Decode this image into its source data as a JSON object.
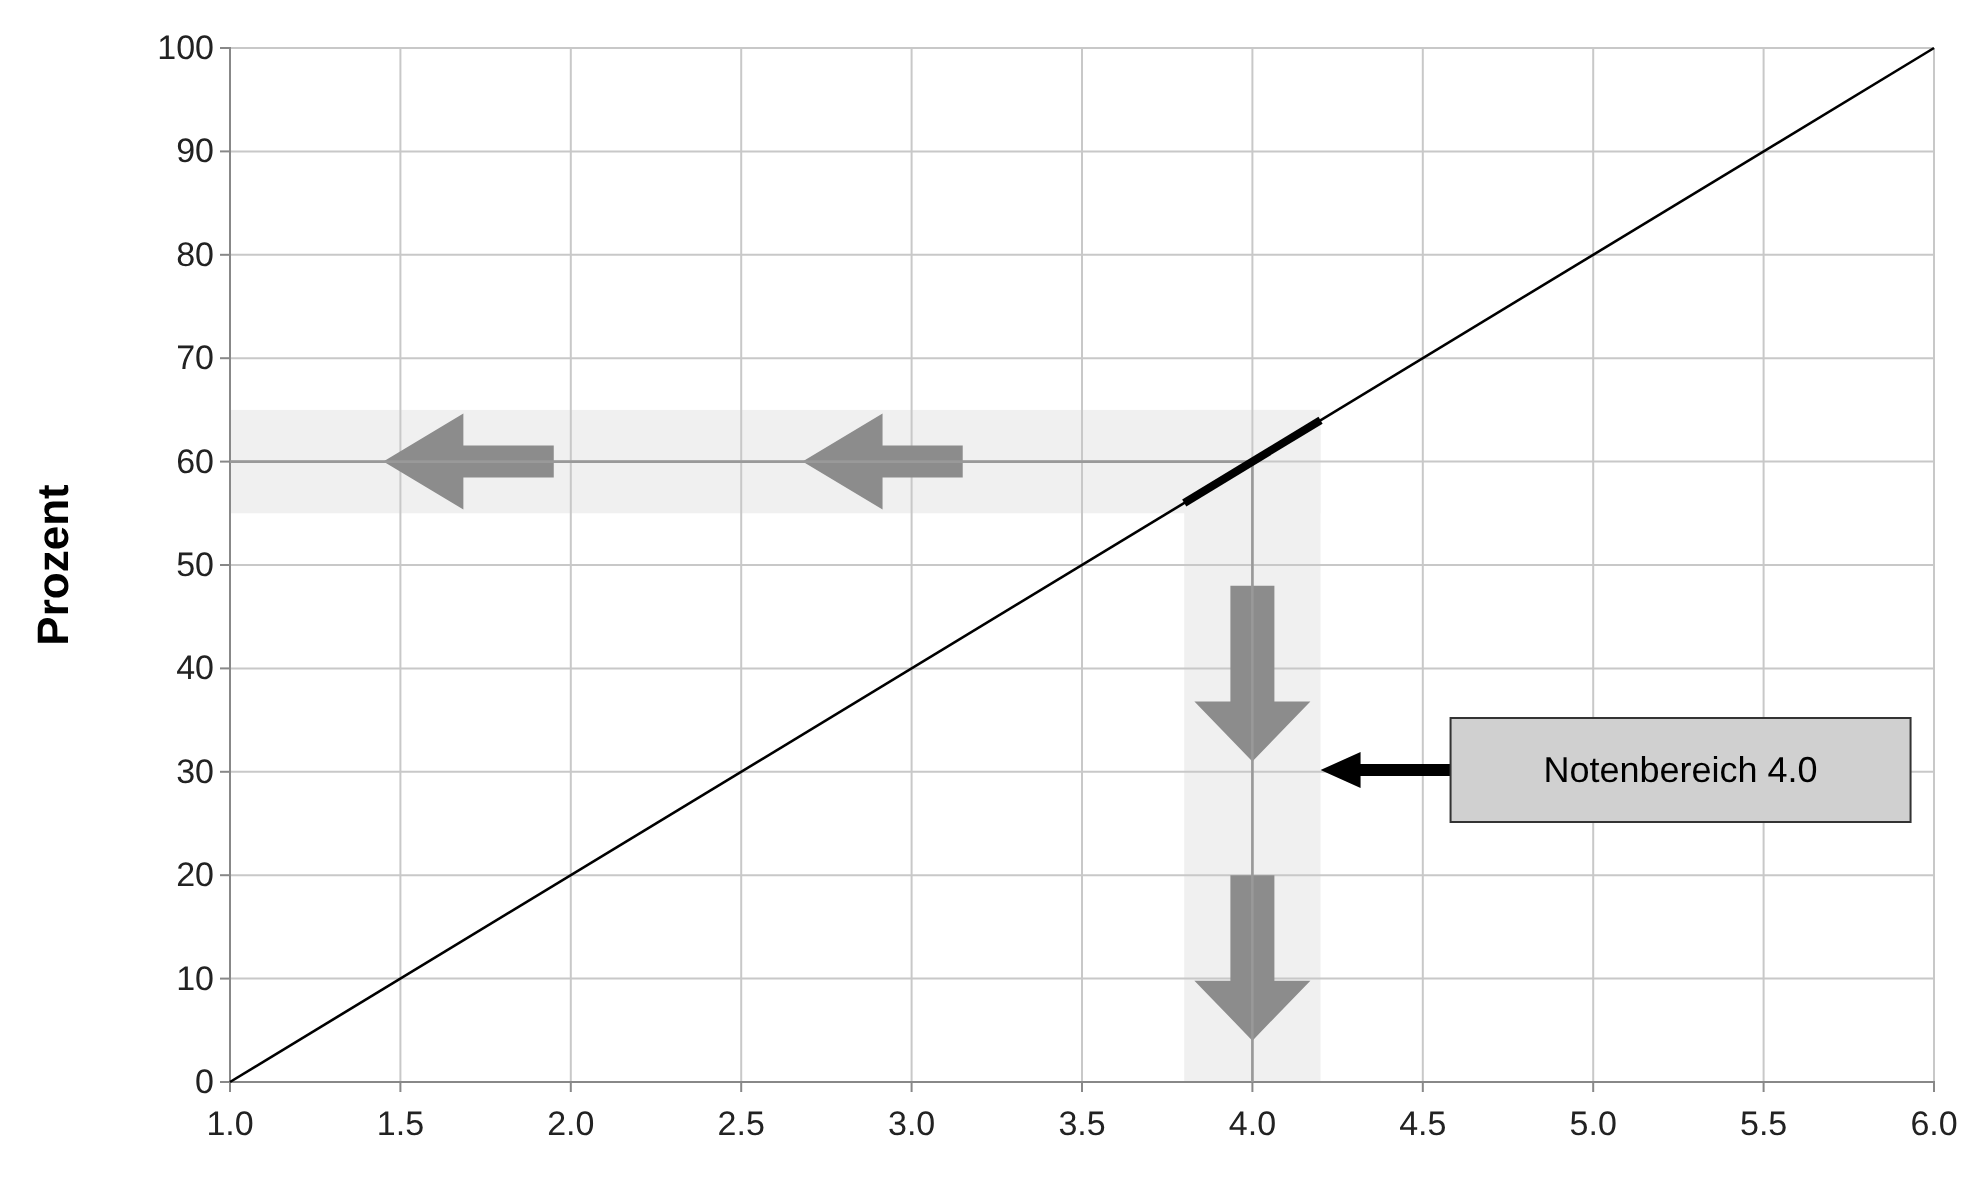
{
  "chart_data": {
    "type": "line",
    "ylabel": "Prozent",
    "xlim": [
      1,
      6
    ],
    "ylim": [
      0,
      100
    ],
    "xticks": [
      {
        "value": 1,
        "label": "1.0"
      },
      {
        "value": 1.5,
        "label": "1.5"
      },
      {
        "value": 2,
        "label": "2.0"
      },
      {
        "value": 2.5,
        "label": "2.5"
      },
      {
        "value": 3,
        "label": "3.0"
      },
      {
        "value": 3.5,
        "label": "3.5"
      },
      {
        "value": 4,
        "label": "4.0"
      },
      {
        "value": 4.5,
        "label": "4.5"
      },
      {
        "value": 5,
        "label": "5.0"
      },
      {
        "value": 5.5,
        "label": "5.5"
      },
      {
        "value": 6,
        "label": "6.0"
      }
    ],
    "yticks": [
      0,
      10,
      20,
      30,
      40,
      50,
      60,
      70,
      80,
      90,
      100
    ],
    "grid": true,
    "marker": "none",
    "line_style": "solid",
    "series": [
      {
        "color": "#000000",
        "x": [
          1,
          6
        ],
        "values": [
          0,
          100
        ]
      },
      {
        "color": "#999999",
        "x": [
          1,
          4
        ],
        "values": [
          60,
          60
        ]
      },
      {
        "color": "#999999",
        "x": [
          4,
          4
        ],
        "values": [
          60,
          0
        ]
      },
      {
        "color": "#000000",
        "x": [
          3.8,
          4.2
        ],
        "values": [
          56,
          64
        ]
      }
    ],
    "bands": [
      {
        "axis": "y",
        "from": 55,
        "to": 65,
        "color": "#f0f0f0"
      },
      {
        "axis": "x",
        "from": 3.8,
        "to": 4.2,
        "color": "#f0f0f0"
      }
    ],
    "annotations": [
      "Notenbereich 4.0"
    ]
  }
}
